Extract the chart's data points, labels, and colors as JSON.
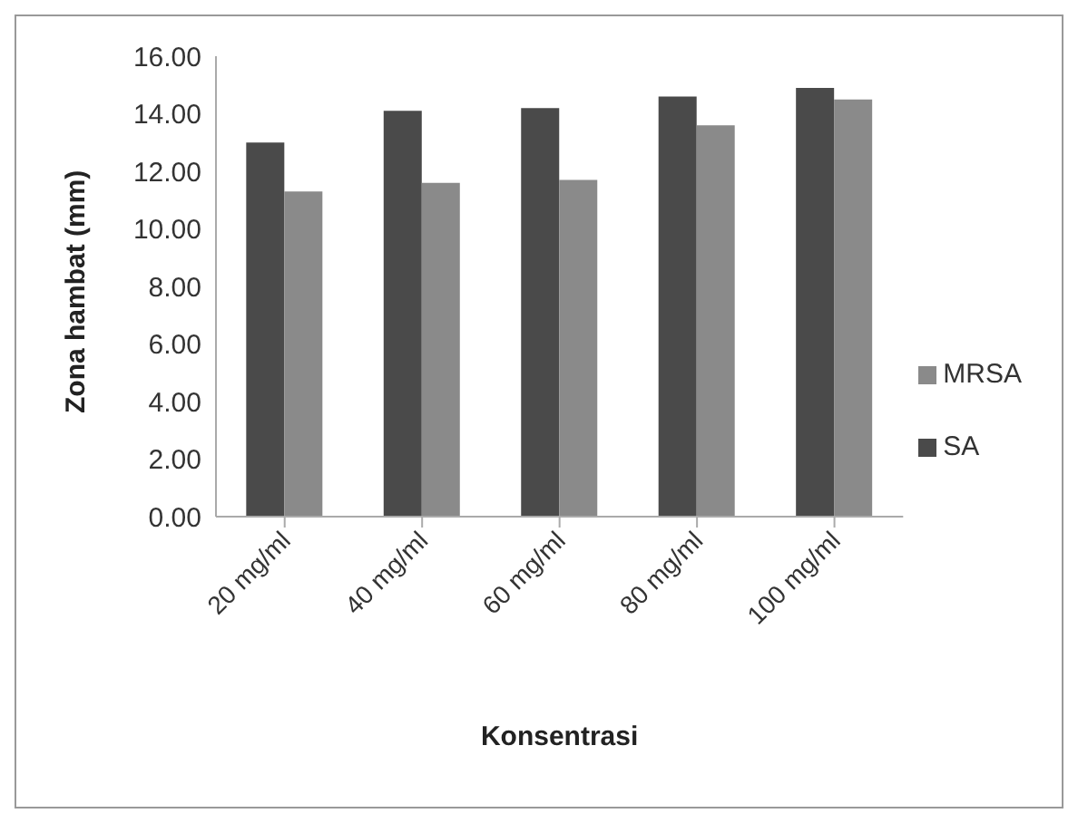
{
  "chart_data": {
    "type": "bar",
    "xlabel": "Konsentrasi",
    "ylabel": "Zona hambat (mm)",
    "categories": [
      "20 mg/ml",
      "40 mg/ml",
      "60 mg/ml",
      "80 mg/ml",
      "100 mg/ml"
    ],
    "series": [
      {
        "name": "SA",
        "color": "#4a4a4a",
        "values": [
          13.0,
          14.1,
          14.2,
          14.6,
          14.9
        ]
      },
      {
        "name": "MRSA",
        "color": "#8a8a8a",
        "values": [
          11.3,
          11.6,
          11.7,
          13.6,
          14.5
        ]
      }
    ],
    "ylim": [
      0,
      16
    ],
    "yticks": [
      {
        "value": 0,
        "label": "0.00"
      },
      {
        "value": 2,
        "label": "2.00"
      },
      {
        "value": 4,
        "label": "4.00"
      },
      {
        "value": 6,
        "label": "6.00"
      },
      {
        "value": 8,
        "label": "8.00"
      },
      {
        "value": 10,
        "label": "10.00"
      },
      {
        "value": 12,
        "label": "12.00"
      },
      {
        "value": 14,
        "label": "14.00"
      },
      {
        "value": 16,
        "label": "16.00"
      }
    ],
    "grid": false,
    "legend": "right"
  }
}
